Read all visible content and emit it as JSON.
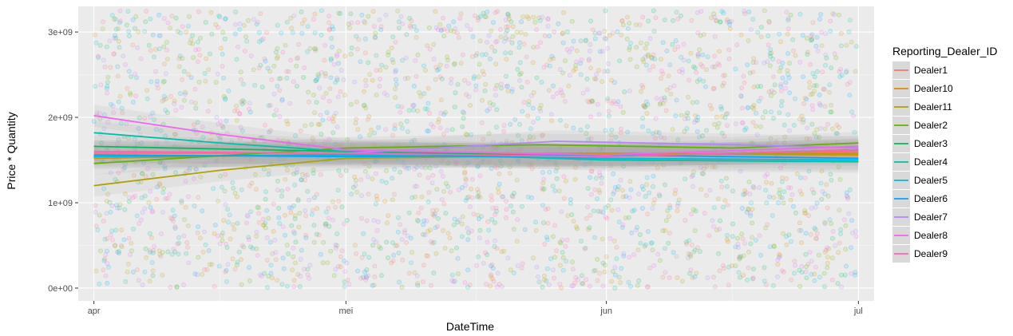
{
  "chart_data": {
    "type": "scatter",
    "xlabel": "DateTime",
    "ylabel": "Price * Quantity",
    "x_ticks": [
      "apr",
      "mei",
      "jun",
      "jul"
    ],
    "x_range": [
      "2016-04-01",
      "2016-07-01"
    ],
    "y_ticks": [
      "0e+00",
      "1e+09",
      "2e+09",
      "3e+09"
    ],
    "y_tick_values": [
      0,
      1000000000,
      2000000000,
      3000000000
    ],
    "ylim": [
      -150000000,
      3300000000
    ],
    "grid": true,
    "legend": {
      "title": "Reporting_Dealer_ID",
      "position": "right"
    },
    "points": {
      "description_x_range": [
        "2016-04-01",
        "2016-07-01"
      ],
      "y_range": [
        0,
        3250000000
      ],
      "opacity": 0.25
    },
    "series": [
      {
        "name": "Dealer1",
        "color": "#F8766D",
        "trend": [
          [
            "2016-04-01",
            1580000000
          ],
          [
            "2016-05-01",
            1580000000
          ],
          [
            "2016-06-01",
            1560000000
          ],
          [
            "2016-07-01",
            1600000000
          ]
        ]
      },
      {
        "name": "Dealer10",
        "color": "#DB8E00",
        "trend": [
          [
            "2016-04-01",
            1520000000
          ],
          [
            "2016-05-01",
            1570000000
          ],
          [
            "2016-06-01",
            1580000000
          ],
          [
            "2016-07-01",
            1560000000
          ]
        ]
      },
      {
        "name": "Dealer11",
        "color": "#AEA200",
        "trend": [
          [
            "2016-04-01",
            1200000000
          ],
          [
            "2016-04-16",
            1380000000
          ],
          [
            "2016-05-01",
            1520000000
          ],
          [
            "2016-06-01",
            1560000000
          ],
          [
            "2016-07-01",
            1580000000
          ]
        ]
      },
      {
        "name": "Dealer2",
        "color": "#64B200",
        "trend": [
          [
            "2016-04-01",
            1460000000
          ],
          [
            "2016-05-01",
            1640000000
          ],
          [
            "2016-05-24",
            1680000000
          ],
          [
            "2016-06-16",
            1640000000
          ],
          [
            "2016-07-01",
            1700000000
          ]
        ]
      },
      {
        "name": "Dealer3",
        "color": "#00BD5C",
        "trend": [
          [
            "2016-04-01",
            1660000000
          ],
          [
            "2016-05-01",
            1600000000
          ],
          [
            "2016-06-01",
            1540000000
          ],
          [
            "2016-07-01",
            1620000000
          ]
        ]
      },
      {
        "name": "Dealer4",
        "color": "#00C1A7",
        "trend": [
          [
            "2016-04-01",
            1820000000
          ],
          [
            "2016-04-16",
            1700000000
          ],
          [
            "2016-05-01",
            1600000000
          ],
          [
            "2016-06-01",
            1500000000
          ],
          [
            "2016-07-01",
            1480000000
          ]
        ]
      },
      {
        "name": "Dealer5",
        "color": "#00BADE",
        "trend": [
          [
            "2016-04-01",
            1540000000
          ],
          [
            "2016-05-01",
            1560000000
          ],
          [
            "2016-06-01",
            1520000000
          ],
          [
            "2016-07-01",
            1500000000
          ]
        ]
      },
      {
        "name": "Dealer6",
        "color": "#00A6FF",
        "trend": [
          [
            "2016-04-01",
            1560000000
          ],
          [
            "2016-05-01",
            1540000000
          ],
          [
            "2016-06-01",
            1560000000
          ],
          [
            "2016-07-01",
            1520000000
          ]
        ]
      },
      {
        "name": "Dealer7",
        "color": "#B385FF",
        "trend": [
          [
            "2016-04-01",
            1600000000
          ],
          [
            "2016-05-01",
            1580000000
          ],
          [
            "2016-05-26",
            1720000000
          ],
          [
            "2016-06-16",
            1680000000
          ],
          [
            "2016-07-01",
            1640000000
          ]
        ]
      },
      {
        "name": "Dealer8",
        "color": "#EF67EB",
        "trend": [
          [
            "2016-04-01",
            2020000000
          ],
          [
            "2016-04-16",
            1800000000
          ],
          [
            "2016-05-01",
            1620000000
          ],
          [
            "2016-06-01",
            1560000000
          ],
          [
            "2016-07-01",
            1660000000
          ]
        ]
      },
      {
        "name": "Dealer9",
        "color": "#FF63B6",
        "trend": [
          [
            "2016-04-01",
            1600000000
          ],
          [
            "2016-05-01",
            1580000000
          ],
          [
            "2016-06-01",
            1540000000
          ],
          [
            "2016-07-01",
            1620000000
          ]
        ]
      }
    ]
  }
}
